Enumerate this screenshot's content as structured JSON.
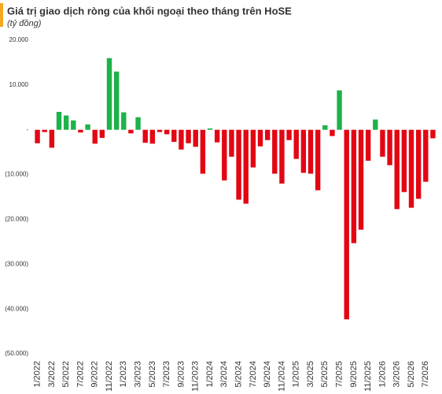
{
  "chart_data": {
    "type": "bar",
    "title": "Giá trị giao dịch ròng của khối ngoại theo tháng trên HoSE",
    "subtitle": "(tỷ đồng)",
    "categories": [
      "1/2022",
      null,
      "3/2022",
      null,
      "5/2022",
      null,
      "7/2022",
      null,
      "9/2022",
      null,
      "11/2022",
      null,
      "1/2023",
      null,
      "3/2023",
      null,
      "5/2023",
      null,
      "7/2023",
      null,
      "9/2023",
      null,
      "11/2023",
      null,
      "1/2024",
      null,
      "3/2024",
      null,
      "5/2024",
      null,
      "7/2024",
      null,
      "9/2024",
      null,
      "11/2024",
      null,
      "1/2025",
      null,
      "3/2025",
      null,
      "5/2025",
      null,
      "7/2025",
      null,
      "9/2025",
      null,
      "11/2025",
      null,
      "1/2026",
      null,
      "3/2026",
      null,
      "5/2026",
      null,
      "7/2026",
      null
    ],
    "values": [
      -3000,
      -500,
      -4000,
      4000,
      3200,
      2100,
      -600,
      1200,
      -3100,
      -1800,
      16000,
      13000,
      3900,
      -800,
      2800,
      -2900,
      -3100,
      -500,
      -1000,
      -2700,
      -4400,
      -3000,
      -3800,
      -9800,
      300,
      -2800,
      -11300,
      -6000,
      -15600,
      -16500,
      -8400,
      -3700,
      -2300,
      -9800,
      -12000,
      -2300,
      -6500,
      -9600,
      -9800,
      -13500,
      1000,
      -1400,
      8800,
      -42300,
      -25300,
      -22300,
      -6900,
      2300,
      -6000,
      -7900,
      -17700,
      -13900,
      -17400,
      -15400,
      -11600,
      -1900
    ],
    "positive_color": "#1db24a",
    "negative_color": "#e30613",
    "ylim": [
      -50000,
      20000
    ],
    "yticks": [
      {
        "value": 20000,
        "label": "20.000"
      },
      {
        "value": 10000,
        "label": "10.000"
      },
      {
        "value": 0,
        "label": "-"
      },
      {
        "value": -10000,
        "label": "(10.000)"
      },
      {
        "value": -20000,
        "label": "(20.000)"
      },
      {
        "value": -30000,
        "label": "(30.000)"
      },
      {
        "value": -40000,
        "label": "(40.000)"
      },
      {
        "value": -50000,
        "label": "(50.000)"
      }
    ],
    "grid": false
  }
}
